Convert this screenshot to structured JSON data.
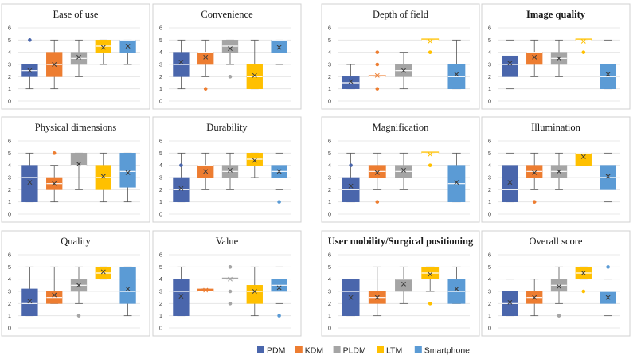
{
  "chart_data": {
    "type": "boxplot",
    "series_names": [
      "PDM",
      "KDM",
      "PLDM",
      "LTM",
      "Smartphone"
    ],
    "colors": {
      "PDM": "#4a66ac",
      "KDM": "#ed7d31",
      "PLDM": "#a5a5a5",
      "LTM": "#ffc000",
      "Smartphone": "#5b9bd5"
    },
    "ylim": [
      0,
      6
    ],
    "yticks": [
      "0",
      "1",
      "2",
      "3",
      "4",
      "5",
      "6"
    ],
    "legend_position": "bottom-right",
    "panels": [
      {
        "title": "Ease of use",
        "bold": false,
        "boxes": [
          {
            "min": 1,
            "q1": 2,
            "median": 2.5,
            "q3": 3,
            "max": 3,
            "mean": 2.5,
            "outliers": [
              5
            ]
          },
          {
            "min": 1,
            "q1": 2,
            "median": 3,
            "q3": 4,
            "max": 5,
            "mean": 3
          },
          {
            "min": 2,
            "q1": 3,
            "median": 3.5,
            "q3": 4,
            "max": 5,
            "mean": 3.6
          },
          {
            "min": 3,
            "q1": 4,
            "median": 4.5,
            "q3": 5,
            "max": 5,
            "mean": 4.4
          },
          {
            "min": 3,
            "q1": 4,
            "median": 5,
            "q3": 5,
            "max": 5,
            "mean": 4.5
          }
        ]
      },
      {
        "title": "Convenience",
        "bold": false,
        "boxes": [
          {
            "min": 1,
            "q1": 2,
            "median": 3,
            "q3": 4,
            "max": 5,
            "mean": 3.2
          },
          {
            "min": 2,
            "q1": 3,
            "median": 4,
            "q3": 4,
            "max": 5,
            "mean": 3.6,
            "outliers": [
              1
            ]
          },
          {
            "min": 3,
            "q1": 4,
            "median": 4.5,
            "q3": 5,
            "max": 5,
            "mean": 4.3,
            "outliers": [
              2
            ]
          },
          {
            "min": 1,
            "q1": 1,
            "median": 2,
            "q3": 3,
            "max": 5,
            "mean": 2.1
          },
          {
            "min": 3,
            "q1": 4,
            "median": 5,
            "q3": 5,
            "max": 5,
            "mean": 4.4
          }
        ]
      },
      {
        "title": "Depth of field",
        "bold": false,
        "boxes": [
          {
            "min": 1,
            "q1": 1,
            "median": 1.5,
            "q3": 2,
            "max": 3,
            "mean": 1.6
          },
          {
            "min": 2,
            "q1": 2,
            "median": 2,
            "q3": 2,
            "max": 2,
            "mean": 2.1,
            "outliers": [
              1,
              3,
              4
            ]
          },
          {
            "min": 1,
            "q1": 2,
            "median": 2.5,
            "q3": 3,
            "max": 4,
            "mean": 2.5
          },
          {
            "min": 5,
            "q1": 5,
            "median": 5,
            "q3": 5,
            "max": 5,
            "mean": 4.9,
            "outliers": [
              4
            ]
          },
          {
            "min": 1,
            "q1": 1,
            "median": 2,
            "q3": 3,
            "max": 5,
            "mean": 2.2
          }
        ]
      },
      {
        "title": "Image quality",
        "bold": true,
        "boxes": [
          {
            "min": 1,
            "q1": 2,
            "median": 3,
            "q3": 3.7,
            "max": 5,
            "mean": 3.1
          },
          {
            "min": 2,
            "q1": 3,
            "median": 4,
            "q3": 4,
            "max": 5,
            "mean": 3.6
          },
          {
            "min": 2,
            "q1": 3,
            "median": 3.5,
            "q3": 4,
            "max": 5,
            "mean": 3.5
          },
          {
            "min": 5,
            "q1": 5,
            "median": 5,
            "q3": 5,
            "max": 5,
            "mean": 4.9,
            "outliers": [
              4
            ]
          },
          {
            "min": 1,
            "q1": 1,
            "median": 2,
            "q3": 3,
            "max": 5,
            "mean": 2.2
          }
        ]
      },
      {
        "title": "Physical dimensions",
        "bold": false,
        "boxes": [
          {
            "min": 1,
            "q1": 1,
            "median": 3,
            "q3": 4,
            "max": 5,
            "mean": 2.6
          },
          {
            "min": 1,
            "q1": 2,
            "median": 2.5,
            "q3": 3,
            "max": 4,
            "mean": 2.5,
            "outliers": [
              5
            ]
          },
          {
            "min": 2,
            "q1": 4,
            "median": 4,
            "q3": 5,
            "max": 5,
            "mean": 4.1
          },
          {
            "min": 1,
            "q1": 2,
            "median": 3,
            "q3": 4,
            "max": 5,
            "mean": 3.1
          },
          {
            "min": 1,
            "q1": 2.2,
            "median": 3.5,
            "q3": 5,
            "max": 5,
            "mean": 3.4
          }
        ]
      },
      {
        "title": "Durability",
        "bold": false,
        "boxes": [
          {
            "min": 1,
            "q1": 1,
            "median": 2,
            "q3": 3,
            "max": 5,
            "mean": 2.1,
            "outliers": [
              4
            ]
          },
          {
            "min": 2,
            "q1": 3,
            "median": 4,
            "q3": 4,
            "max": 5,
            "mean": 3.5
          },
          {
            "min": 2,
            "q1": 3,
            "median": 3.5,
            "q3": 4,
            "max": 5,
            "mean": 3.6
          },
          {
            "min": 3,
            "q1": 4,
            "median": 4.5,
            "q3": 5,
            "max": 5,
            "mean": 4.4
          },
          {
            "min": 2,
            "q1": 3,
            "median": 3.5,
            "q3": 4,
            "max": 5,
            "mean": 3.5,
            "outliers": [
              1
            ]
          }
        ]
      },
      {
        "title": "Magnification",
        "bold": false,
        "boxes": [
          {
            "min": 1,
            "q1": 1,
            "median": 2,
            "q3": 3,
            "max": 5,
            "mean": 2.3,
            "outliers": [
              4
            ]
          },
          {
            "min": 2,
            "q1": 3,
            "median": 3.5,
            "q3": 4,
            "max": 5,
            "mean": 3.4,
            "outliers": [
              1
            ]
          },
          {
            "min": 2,
            "q1": 3,
            "median": 3.5,
            "q3": 4,
            "max": 5,
            "mean": 3.6
          },
          {
            "min": 5,
            "q1": 5,
            "median": 5,
            "q3": 5,
            "max": 5,
            "mean": 4.9,
            "outliers": [
              4
            ]
          },
          {
            "min": 1,
            "q1": 1,
            "median": 2.5,
            "q3": 4,
            "max": 5,
            "mean": 2.6
          }
        ]
      },
      {
        "title": "Illumination",
        "bold": false,
        "boxes": [
          {
            "min": 1,
            "q1": 1,
            "median": 2,
            "q3": 4,
            "max": 5,
            "mean": 2.6
          },
          {
            "min": 2,
            "q1": 3,
            "median": 3.5,
            "q3": 4,
            "max": 5,
            "mean": 3.4,
            "outliers": [
              1
            ]
          },
          {
            "min": 2,
            "q1": 3,
            "median": 3.5,
            "q3": 4,
            "max": 5,
            "mean": 3.5
          },
          {
            "min": 4,
            "q1": 4,
            "median": 5,
            "q3": 5,
            "max": 5,
            "mean": 4.7
          },
          {
            "min": 1,
            "q1": 2,
            "median": 3,
            "q3": 4,
            "max": 5,
            "mean": 3.1
          }
        ]
      },
      {
        "title": "Quality",
        "bold": false,
        "boxes": [
          {
            "min": 1,
            "q1": 1,
            "median": 2,
            "q3": 3.2,
            "max": 5,
            "mean": 2.2
          },
          {
            "min": 2,
            "q1": 2,
            "median": 2.5,
            "q3": 3,
            "max": 5,
            "mean": 2.7
          },
          {
            "min": 2,
            "q1": 3,
            "median": 3.5,
            "q3": 4,
            "max": 5,
            "mean": 3.5,
            "outliers": [
              1
            ]
          },
          {
            "min": 4,
            "q1": 4,
            "median": 4.5,
            "q3": 5,
            "max": 5,
            "mean": 4.6
          },
          {
            "min": 1,
            "q1": 2,
            "median": 3,
            "q3": 5,
            "max": 5,
            "mean": 3.2
          }
        ]
      },
      {
        "title": "Value",
        "bold": false,
        "boxes": [
          {
            "min": 1,
            "q1": 1,
            "median": 3,
            "q3": 4,
            "max": 5,
            "mean": 2.6
          },
          {
            "min": 3,
            "q1": 3,
            "median": 3,
            "q3": 3.2,
            "max": 3.2,
            "mean": 3.1
          },
          {
            "min": 4,
            "q1": 4,
            "median": 4,
            "q3": 4,
            "max": 4,
            "mean": 4,
            "outliers": [
              2,
              3,
              5
            ]
          },
          {
            "min": 1,
            "q1": 2,
            "median": 3,
            "q3": 3.5,
            "max": 5,
            "mean": 3.0
          },
          {
            "min": 2,
            "q1": 3,
            "median": 3.5,
            "q3": 4,
            "max": 5,
            "mean": 3.3,
            "outliers": [
              1
            ]
          }
        ]
      },
      {
        "title": "User mobility/Surgical positioning",
        "bold": true,
        "boxes": [
          {
            "min": 1,
            "q1": 1,
            "median": 3,
            "q3": 4,
            "max": 4,
            "mean": 2.5
          },
          {
            "min": 1,
            "q1": 2,
            "median": 2.5,
            "q3": 3,
            "max": 5,
            "mean": 2.5
          },
          {
            "min": 2,
            "q1": 3,
            "median": 4,
            "q3": 4,
            "max": 5,
            "mean": 3.6
          },
          {
            "min": 3,
            "q1": 4,
            "median": 4.5,
            "q3": 5,
            "max": 5,
            "mean": 4.4,
            "outliers": [
              2
            ]
          },
          {
            "min": 2,
            "q1": 2,
            "median": 3,
            "q3": 4,
            "max": 5,
            "mean": 3.2
          }
        ]
      },
      {
        "title": "Overall score",
        "bold": false,
        "boxes": [
          {
            "min": 1,
            "q1": 1,
            "median": 2,
            "q3": 3,
            "max": 4,
            "mean": 2.1
          },
          {
            "min": 1,
            "q1": 2,
            "median": 2.5,
            "q3": 3,
            "max": 4,
            "mean": 2.5
          },
          {
            "min": 2,
            "q1": 3,
            "median": 3.5,
            "q3": 4,
            "max": 5,
            "mean": 3.4,
            "outliers": [
              1
            ]
          },
          {
            "min": 4,
            "q1": 4,
            "median": 4.5,
            "q3": 5,
            "max": 5,
            "mean": 4.5,
            "outliers": [
              3
            ]
          },
          {
            "min": 1,
            "q1": 2,
            "median": 3,
            "q3": 3,
            "max": 4,
            "mean": 2.5,
            "outliers": [
              5
            ]
          }
        ]
      }
    ]
  }
}
